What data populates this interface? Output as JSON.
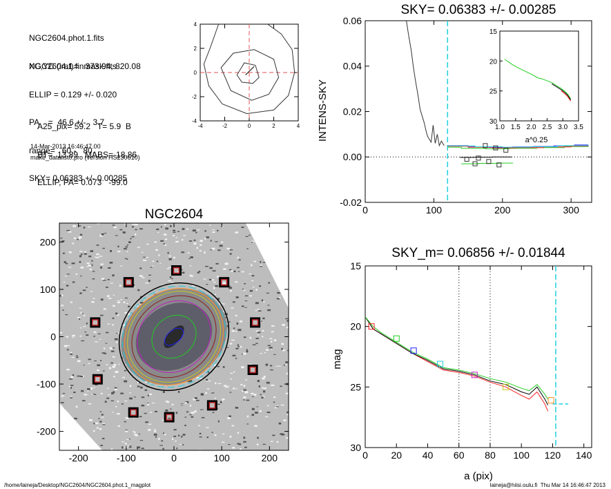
{
  "header": {
    "lines_a": [
      "NGC2604.phot.1.fits",
      "NGC2604.1.finmask.fits"
    ],
    "lines_b": [
      "XC,YC (iraf)=   373.94, 820.08",
      "ELLIP = 0.129 +/- 0.020",
      "PA    =  46.6 +/-   3.7",
      "range=   60.-   80.",
      "SKY= 0.06383 +/- 0.00285"
    ],
    "lines_c": [
      "A25_pix= 59.2   T= 5.9  B",
      "BT=  13.89   MABS=-18.86",
      "ELLIP, PA= 0.073   -99.0"
    ],
    "timestamp": "14-Mar-2013 16:46:47.00",
    "program": "make_datalist0.pro (version HS230610)"
  },
  "footer": {
    "path": "/home/laineja/Desktop/NGC2604/NGC2604.phot.1_magplot",
    "user": "laineja@hiisi.oulu.fi  Thu Mar 14 16:46:47 2013"
  },
  "chart_data": [
    {
      "id": "contour",
      "type": "contour",
      "xlim": [
        -4,
        4
      ],
      "ylim": [
        -4,
        4
      ],
      "xticks": [
        "-4",
        "-2",
        "0",
        "2",
        "4"
      ],
      "yticks": [
        "4",
        "2",
        "0",
        "-2",
        "-4"
      ],
      "contours": [
        [
          [
            -1.0,
            -0.2
          ],
          [
            -0.4,
            0.8
          ],
          [
            0.5,
            0.6
          ],
          [
            0.8,
            -0.4
          ],
          [
            0.3,
            -0.9
          ],
          [
            -0.6,
            -0.8
          ]
        ],
        [
          [
            -2.3,
            0.4
          ],
          [
            -1.3,
            1.6
          ],
          [
            0.4,
            1.9
          ],
          [
            2.0,
            1.1
          ],
          [
            2.4,
            -0.4
          ],
          [
            1.6,
            -1.8
          ],
          [
            0.2,
            -2.3
          ],
          [
            -1.5,
            -1.5
          ]
        ],
        [
          [
            -2.5,
            4.0
          ],
          [
            -3.2,
            2.0
          ],
          [
            -3.7,
            0.7
          ],
          [
            -3.3,
            -1.1
          ],
          [
            -2.2,
            -2.6
          ],
          [
            -0.2,
            -3.4
          ],
          [
            2.0,
            -3.1
          ],
          [
            3.2,
            -1.9
          ],
          [
            3.7,
            0.0
          ],
          [
            3.5,
            1.9
          ],
          [
            2.6,
            3.2
          ],
          [
            1.5,
            4.0
          ]
        ]
      ]
    },
    {
      "id": "sky",
      "type": "line",
      "title": "SKY= 0.06383 +/- 0.00285",
      "ylabel": "INTENS-SKY",
      "xlim": [
        0,
        330
      ],
      "ylim": [
        -0.02,
        0.06
      ],
      "xticks": [
        "0",
        "100",
        "200",
        "300"
      ],
      "yticks": [
        "0.06",
        "0.04",
        "0.02",
        "0.00",
        "-0.02"
      ],
      "profile": {
        "x": [
          60,
          63,
          67,
          70,
          73,
          77,
          80,
          83,
          86,
          89,
          91,
          93,
          96,
          99,
          102,
          105,
          108,
          111,
          113,
          115
        ],
        "y": [
          0.06,
          0.054,
          0.047,
          0.04,
          0.034,
          0.027,
          0.021,
          0.018,
          0.015,
          0.011,
          0.009,
          0.008,
          0.0065,
          0.014,
          0.006,
          0.01,
          0.005,
          0.007,
          0.006,
          0.005
        ]
      },
      "steps": [
        {
          "color": "#2020ff",
          "x": [
            120,
            150,
            180,
            215,
            245,
            275,
            305,
            325
          ],
          "y": [
            0.005,
            0.0045,
            0.0042,
            0.0044,
            0.0046,
            0.0049,
            0.0053,
            0.0054
          ]
        },
        {
          "color": "#20cc20",
          "x": [
            120,
            140,
            175,
            210,
            250,
            290,
            325
          ],
          "y": [
            0.0043,
            0.0038,
            0.0036,
            0.0038,
            0.0041,
            0.0046,
            0.0052
          ]
        },
        {
          "color": "#ff2020",
          "x": [
            120,
            150,
            185,
            220,
            260,
            300,
            325
          ],
          "y": [
            0.0047,
            0.0043,
            0.004,
            0.0041,
            0.0044,
            0.0048,
            0.0053
          ]
        },
        {
          "color": "#20c8d8",
          "x": [
            120,
            160,
            200,
            240,
            280,
            325
          ],
          "y": [
            0.0049,
            0.0045,
            0.0043,
            0.0045,
            0.005,
            0.0054
          ]
        },
        {
          "color": "#000000",
          "x": [
            138,
            160,
            185,
            213
          ],
          "y": [
            -0.0002,
            -0.0001,
            0.0,
            0.0001
          ]
        },
        {
          "color": "#20cc20",
          "x": [
            140,
            165,
            195,
            215
          ],
          "y": [
            -0.003,
            -0.0028,
            -0.0027,
            -0.0026
          ]
        }
      ],
      "markers": [
        [
          148,
          -0.001
        ],
        [
          165,
          -0.0005
        ],
        [
          175,
          0.005
        ],
        [
          190,
          0.004
        ],
        [
          205,
          0.003
        ],
        [
          180,
          -0.002
        ],
        [
          195,
          -0.0035
        ],
        [
          160,
          -0.003
        ]
      ],
      "inset": {
        "xlabel": "a^0.25",
        "xlim": [
          1.0,
          3.5
        ],
        "ylim": [
          15,
          30
        ],
        "xticks": [
          "1.0",
          "1.5",
          "2.0",
          "2.5",
          "3.0",
          "3.5"
        ],
        "yticks": [
          "15",
          "20",
          "25",
          "30"
        ],
        "x": [
          1.15,
          1.4,
          1.6,
          1.8,
          2.0,
          2.2,
          2.35,
          2.5,
          2.65,
          2.8,
          2.95,
          3.05,
          3.15,
          3.25
        ],
        "y": [
          19.7,
          20.6,
          21.2,
          21.7,
          22.2,
          22.8,
          23.0,
          23.3,
          23.6,
          24.1,
          24.6,
          25.0,
          25.5,
          26.3
        ]
      }
    },
    {
      "id": "mag",
      "type": "line",
      "title": "SKY_m=  0.06856 +/- 0.01844",
      "xlabel": "a (pix)",
      "ylabel": "mag",
      "xlim": [
        0,
        145
      ],
      "ylim": [
        15,
        30
      ],
      "xticks": [
        "0",
        "20",
        "40",
        "60",
        "80",
        "100",
        "120",
        "140"
      ],
      "yticks": [
        "15",
        "20",
        "25",
        "30"
      ],
      "vlines_dotted": [
        60,
        80
      ],
      "vline_sky": 122,
      "sky_segment": {
        "x": [
          120,
          130
        ],
        "y": [
          26.4,
          26.4
        ]
      },
      "series": [
        {
          "color": "#ff2020",
          "x": [
            0,
            5,
            10,
            20,
            30,
            40,
            50,
            60,
            70,
            80,
            90,
            100,
            105,
            110,
            115,
            117
          ],
          "y": [
            19.2,
            20.2,
            20.6,
            21.4,
            22.2,
            22.9,
            23.6,
            23.8,
            24.1,
            24.6,
            25.0,
            25.7,
            26.0,
            25.4,
            26.4,
            27.0
          ]
        },
        {
          "color": "#000000",
          "x": [
            0,
            5,
            10,
            20,
            30,
            40,
            50,
            60,
            70,
            80,
            90,
            100,
            105,
            110,
            115,
            117
          ],
          "y": [
            19.2,
            20.2,
            20.6,
            21.4,
            22.2,
            22.8,
            23.5,
            23.7,
            24.0,
            24.5,
            24.8,
            25.4,
            25.6,
            25.0,
            26.0,
            26.5
          ]
        },
        {
          "color": "#20cc20",
          "x": [
            0,
            5,
            10,
            20,
            30,
            40,
            50,
            60,
            70,
            80,
            90,
            100,
            105,
            110,
            115,
            117
          ],
          "y": [
            19.2,
            20.0,
            20.5,
            21.3,
            22.1,
            22.7,
            23.4,
            23.6,
            23.9,
            24.3,
            24.6,
            25.1,
            25.3,
            24.8,
            25.6,
            26.0
          ]
        }
      ],
      "markers": [
        [
          4,
          20.0,
          "#ff2020"
        ],
        [
          20,
          21.0,
          "#20cc20"
        ],
        [
          31,
          22.0,
          "#2020ff"
        ],
        [
          48,
          23.1,
          "#20c8d8"
        ],
        [
          70,
          24.0,
          "#c020c0"
        ],
        [
          90,
          25.0,
          "#c8c820"
        ],
        [
          119,
          26.1,
          "#ff9020"
        ]
      ]
    },
    {
      "id": "image",
      "type": "image",
      "title": "NGC2604",
      "xlim": [
        -240,
        240
      ],
      "ylim": [
        -240,
        240
      ],
      "xticks": [
        "-200",
        "-100",
        "0",
        "100",
        "200"
      ],
      "yticks": [
        "200",
        "100",
        "0",
        "-100",
        "-200"
      ],
      "boxes": [
        [
          5,
          140
        ],
        [
          -95,
          115
        ],
        [
          105,
          115
        ],
        [
          -165,
          30
        ],
        [
          170,
          30
        ],
        [
          -160,
          -90
        ],
        [
          165,
          -70
        ],
        [
          -85,
          -160
        ],
        [
          -10,
          -170
        ],
        [
          80,
          -145
        ]
      ],
      "ellipse_colors": [
        "#000000",
        "#20c8d8",
        "#ff9020",
        "#c8c820",
        "#c020c0",
        "#20cc20",
        "#2020ff"
      ]
    }
  ]
}
